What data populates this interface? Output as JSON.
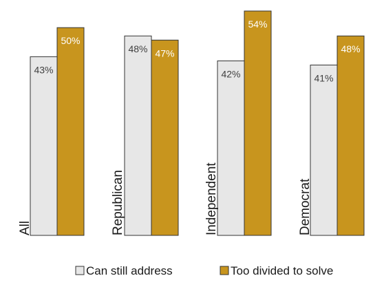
{
  "chart_data": {
    "type": "bar",
    "categories": [
      "All",
      "Republican",
      "Independent",
      "Democrat"
    ],
    "series": [
      {
        "name": "Can still address",
        "values": [
          43,
          48,
          42,
          41
        ],
        "labels": [
          "43%",
          "48%",
          "42%",
          "41%"
        ],
        "color": "#e7e7e7",
        "label_color": "#404040"
      },
      {
        "name": "Too divided to solve",
        "values": [
          50,
          47,
          54,
          48
        ],
        "labels": [
          "50%",
          "47%",
          "54%",
          "48%"
        ],
        "color": "#c8951e",
        "label_color": "#ffffff"
      }
    ],
    "ylim": [
      0,
      54
    ],
    "grid": false,
    "legend_position": "bottom",
    "bar_outline_color": "#333333"
  }
}
